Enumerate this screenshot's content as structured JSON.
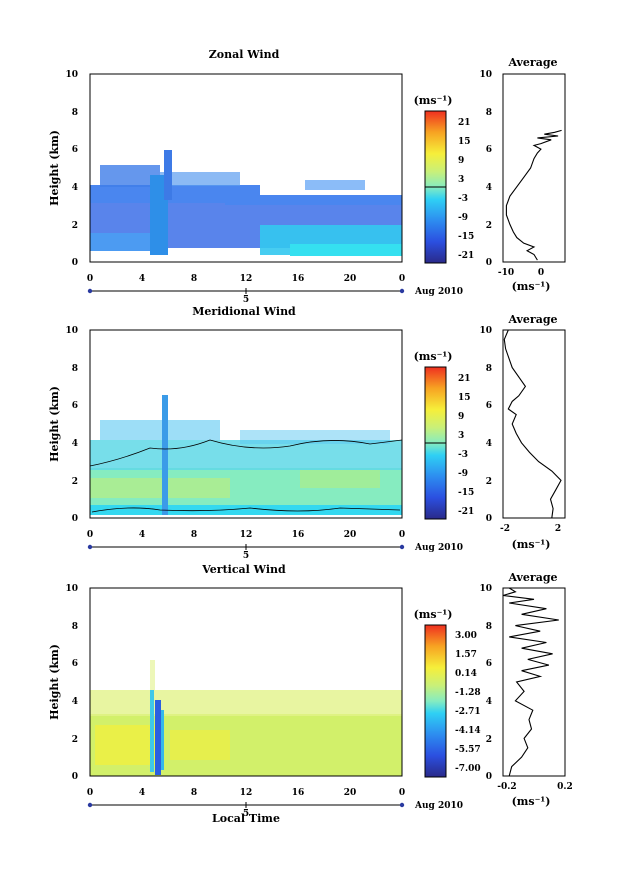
{
  "chart_data": [
    {
      "type": "heatmap",
      "title": "Zonal Wind",
      "ylabel": "Height (km)",
      "x_ticks": [
        "0",
        "4",
        "8",
        "12",
        "16",
        "20",
        "0"
      ],
      "y_ticks": [
        "0",
        "2",
        "4",
        "6",
        "8",
        "10"
      ],
      "xlim": [
        0,
        24
      ],
      "ylim": [
        0,
        10
      ],
      "date_tick": "5",
      "date_label": "Aug 2010",
      "colorbar": {
        "unit": "(ms⁻¹)",
        "ticks": [
          "21",
          "15",
          "9",
          "3",
          "-3",
          "-9",
          "-15",
          "-21"
        ]
      },
      "average": {
        "title": "Average",
        "x_ticks": [
          "-10",
          "0"
        ],
        "xlim": [
          -12,
          6
        ],
        "y_ticks": [
          "0",
          "2",
          "4",
          "6",
          "8",
          "10"
        ],
        "ylim": [
          0,
          10
        ],
        "xlabel": "(ms⁻¹)",
        "profile": [
          [
            -2,
            0.1
          ],
          [
            -3,
            0.4
          ],
          [
            -5,
            0.6
          ],
          [
            -3,
            0.8
          ],
          [
            -6,
            1
          ],
          [
            -8,
            1.3
          ],
          [
            -9,
            1.6
          ],
          [
            -10,
            2
          ],
          [
            -11,
            2.5
          ],
          [
            -11,
            3
          ],
          [
            -10,
            3.5
          ],
          [
            -8,
            4
          ],
          [
            -6,
            4.5
          ],
          [
            -4,
            5
          ],
          [
            -3,
            5.5
          ],
          [
            -2,
            5.8
          ],
          [
            -1,
            6
          ],
          [
            -3,
            6.2
          ],
          [
            -1,
            6.3
          ],
          [
            2,
            6.5
          ],
          [
            -2,
            6.6
          ],
          [
            4,
            6.7
          ],
          [
            0,
            6.8
          ],
          [
            3,
            6.9
          ],
          [
            5,
            7
          ]
        ]
      }
    },
    {
      "type": "heatmap",
      "title": "Meridional Wind",
      "ylabel": "Height (km)",
      "x_ticks": [
        "0",
        "4",
        "8",
        "12",
        "16",
        "20",
        "0"
      ],
      "y_ticks": [
        "0",
        "2",
        "4",
        "6",
        "8",
        "10"
      ],
      "xlim": [
        0,
        24
      ],
      "ylim": [
        0,
        10
      ],
      "date_tick": "5",
      "date_label": "Aug 2010",
      "colorbar": {
        "unit": "(ms⁻¹)",
        "ticks": [
          "21",
          "15",
          "9",
          "3",
          "-3",
          "-9",
          "-15",
          "-21"
        ]
      },
      "average": {
        "title": "Average",
        "x_ticks": [
          "-2",
          "0",
          "2"
        ],
        "xlim": [
          -2.2,
          2.5
        ],
        "y_ticks": [
          "0",
          "2",
          "4",
          "6",
          "8",
          "10"
        ],
        "ylim": [
          0,
          10
        ],
        "xlabel": "(ms⁻¹)",
        "profile": [
          [
            1.5,
            0
          ],
          [
            1.6,
            0.5
          ],
          [
            1.4,
            1
          ],
          [
            1.8,
            1.5
          ],
          [
            2.2,
            2
          ],
          [
            1.5,
            2.5
          ],
          [
            0.5,
            3
          ],
          [
            -0.2,
            3.5
          ],
          [
            -0.8,
            4
          ],
          [
            -1.2,
            4.5
          ],
          [
            -1.5,
            5
          ],
          [
            -1.2,
            5.5
          ],
          [
            -1.8,
            5.8
          ],
          [
            -1.5,
            6.2
          ],
          [
            -1,
            6.5
          ],
          [
            -0.5,
            7
          ],
          [
            -1.5,
            8
          ],
          [
            -2,
            9
          ],
          [
            -2.1,
            9.5
          ],
          [
            -1.8,
            10
          ]
        ]
      }
    },
    {
      "type": "heatmap",
      "title": "Vertical Wind",
      "xlabel": "Local Time",
      "ylabel": "Height (km)",
      "x_ticks": [
        "0",
        "4",
        "8",
        "12",
        "16",
        "20",
        "0"
      ],
      "y_ticks": [
        "0",
        "2",
        "4",
        "6",
        "8",
        "10"
      ],
      "xlim": [
        0,
        24
      ],
      "ylim": [
        0,
        10
      ],
      "date_tick": "5",
      "date_label": "Aug 2010",
      "colorbar": {
        "unit": "(ms⁻¹)",
        "ticks": [
          "3.00",
          "1.57",
          "0.14",
          "-1.28",
          "-2.71",
          "-4.14",
          "-5.57",
          "-7.00"
        ]
      },
      "average": {
        "title": "Average",
        "x_ticks": [
          "-0.2",
          "0",
          "0.2"
        ],
        "xlim": [
          -0.25,
          0.25
        ],
        "y_ticks": [
          "0",
          "2",
          "4",
          "6",
          "8",
          "10"
        ],
        "ylim": [
          0,
          10
        ],
        "xlabel": "(ms⁻¹)",
        "profile": [
          [
            -0.2,
            0
          ],
          [
            -0.18,
            0.5
          ],
          [
            -0.1,
            1
          ],
          [
            -0.05,
            1.5
          ],
          [
            -0.08,
            2
          ],
          [
            -0.02,
            2.5
          ],
          [
            -0.04,
            3
          ],
          [
            -0.01,
            3.5
          ],
          [
            -0.15,
            4
          ],
          [
            -0.08,
            4.5
          ],
          [
            -0.14,
            5
          ],
          [
            0.05,
            5.3
          ],
          [
            -0.1,
            5.6
          ],
          [
            0.12,
            5.9
          ],
          [
            -0.05,
            6.2
          ],
          [
            0.15,
            6.5
          ],
          [
            -0.1,
            6.8
          ],
          [
            0.1,
            7.1
          ],
          [
            -0.2,
            7.4
          ],
          [
            0.05,
            7.7
          ],
          [
            -0.15,
            8
          ],
          [
            0.2,
            8.3
          ],
          [
            -0.1,
            8.6
          ],
          [
            0.1,
            8.9
          ],
          [
            -0.2,
            9.2
          ],
          [
            0,
            9.4
          ],
          [
            -0.25,
            9.6
          ],
          [
            -0.15,
            9.8
          ],
          [
            -0.2,
            10
          ]
        ]
      }
    }
  ]
}
